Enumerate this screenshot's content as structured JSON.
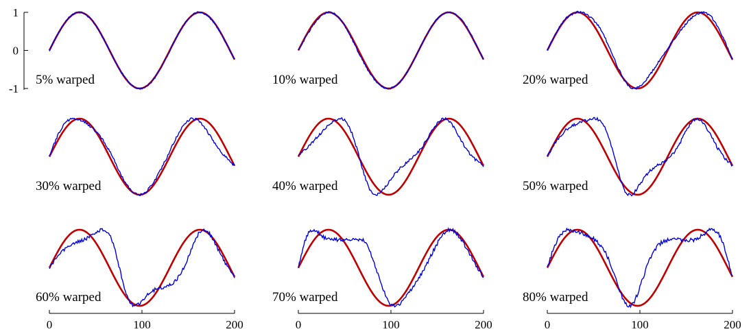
{
  "chart_data": {
    "type": "line",
    "layout": "3x3 grid of small multiples",
    "grid": false,
    "x_axis": {
      "range": [
        0,
        200
      ],
      "ticks": [
        0,
        100,
        200
      ],
      "tick_labels": [
        "0",
        "100",
        "200"
      ]
    },
    "y_axis": {
      "range": [
        -1,
        1
      ],
      "ticks": [
        -1,
        0,
        1
      ],
      "tick_labels": [
        "-1",
        "0",
        "1"
      ]
    },
    "reference_series": {
      "color": "#c00000",
      "x": [
        0,
        25,
        50,
        75,
        100,
        125,
        150,
        175,
        200
      ],
      "y": [
        0.0,
        0.93,
        0.6,
        -0.45,
        -0.96,
        -0.12,
        0.98,
        0.73,
        -0.25
      ]
    },
    "warped_series_color": "#0000dd",
    "panels": [
      {
        "label": "5% warped",
        "warp": 0.05,
        "seed": 1
      },
      {
        "label": "10% warped",
        "warp": 0.1,
        "seed": 2
      },
      {
        "label": "20% warped",
        "warp": 0.2,
        "seed": 3
      },
      {
        "label": "30% warped",
        "warp": 0.3,
        "seed": 4
      },
      {
        "label": "40% warped",
        "warp": 0.4,
        "seed": 5
      },
      {
        "label": "50% warped",
        "warp": 0.5,
        "seed": 6
      },
      {
        "label": "60% warped",
        "warp": 0.6,
        "seed": 7
      },
      {
        "label": "70% warped",
        "warp": 0.7,
        "seed": 8
      },
      {
        "label": "80% warped",
        "warp": 0.8,
        "seed": 9
      }
    ]
  }
}
